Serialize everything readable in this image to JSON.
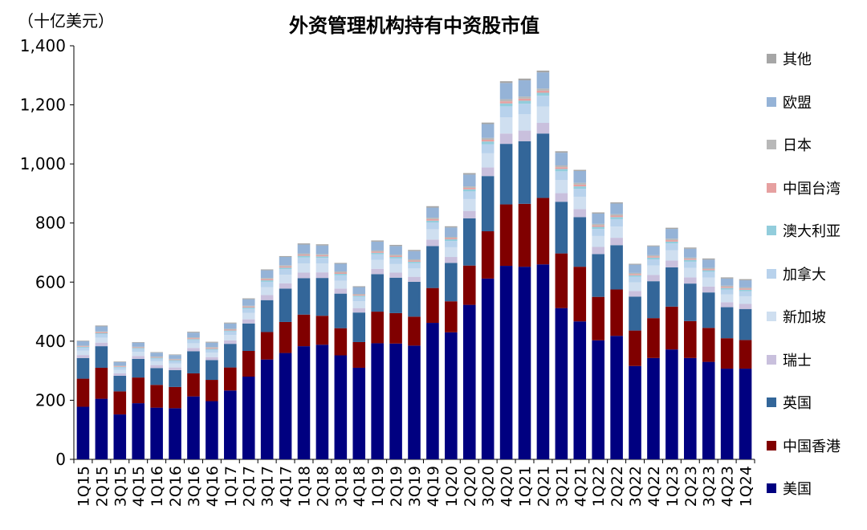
{
  "unit_label": "（十亿美元）",
  "title": "外资管理机构持有中资股市值",
  "chart_data": {
    "type": "bar",
    "stacked": true,
    "ylim": [
      0,
      1400
    ],
    "yticks": [
      0,
      200,
      400,
      600,
      800,
      "1,000",
      "1,200",
      "1,400"
    ],
    "ytick_values": [
      0,
      200,
      400,
      600,
      800,
      1000,
      1200,
      1400
    ],
    "categories": [
      "1Q15",
      "2Q15",
      "3Q15",
      "4Q15",
      "1Q16",
      "2Q16",
      "3Q16",
      "4Q16",
      "1Q17",
      "2Q17",
      "3Q17",
      "4Q17",
      "1Q18",
      "2Q18",
      "3Q18",
      "4Q18",
      "1Q19",
      "2Q19",
      "3Q19",
      "4Q19",
      "1Q20",
      "2Q20",
      "3Q20",
      "4Q20",
      "1Q21",
      "2Q21",
      "3Q21",
      "4Q21",
      "1Q22",
      "2Q22",
      "3Q22",
      "4Q22",
      "1Q23",
      "2Q23",
      "3Q23",
      "4Q23",
      "1Q24"
    ],
    "xtick_labels": [
      "1Q15",
      "2Q15",
      "3Q15",
      "4Q15",
      "1Q16",
      "2Q16",
      "3Q16",
      "4Q16",
      "1Q17",
      "2Q17",
      "3Q17",
      "4Q17",
      "1Q18",
      "2Q18",
      "3Q18",
      "4Q18",
      "1Q19",
      "2Q19",
      "3Q19",
      "4Q19",
      "1Q20",
      "2Q20",
      "3Q20",
      "4Q20",
      "1Q21",
      "2Q21",
      "3Q21",
      "4Q21",
      "1Q22",
      "2Q22",
      "3Q22",
      "4Q22",
      "1Q23",
      "2Q23",
      "3Q23",
      "4Q23",
      "1Q24"
    ],
    "series": [
      {
        "name": "美国",
        "color": "#000080",
        "values": [
          178,
          205,
          152,
          190,
          175,
          173,
          213,
          197,
          233,
          280,
          338,
          360,
          383,
          388,
          352,
          310,
          393,
          392,
          385,
          462,
          430,
          523,
          612,
          655,
          652,
          660,
          512,
          467,
          403,
          418,
          316,
          343,
          372,
          343,
          330,
          307,
          307
        ]
      },
      {
        "name": "中国香港",
        "color": "#800000",
        "values": [
          95,
          105,
          78,
          87,
          77,
          72,
          78,
          72,
          78,
          87,
          93,
          105,
          107,
          98,
          92,
          87,
          107,
          103,
          98,
          118,
          105,
          133,
          160,
          208,
          213,
          225,
          185,
          185,
          147,
          157,
          120,
          135,
          145,
          125,
          115,
          103,
          97
        ]
      },
      {
        "name": "英国",
        "color": "#336699",
        "values": [
          70,
          73,
          53,
          63,
          57,
          57,
          75,
          67,
          80,
          93,
          108,
          113,
          123,
          128,
          117,
          100,
          127,
          120,
          118,
          142,
          130,
          160,
          187,
          205,
          212,
          218,
          175,
          168,
          145,
          150,
          115,
          125,
          133,
          127,
          120,
          105,
          105
        ]
      },
      {
        "name": "瑞士",
        "color": "#C9C0DD",
        "values": [
          10,
          12,
          8,
          10,
          10,
          9,
          11,
          10,
          12,
          14,
          17,
          18,
          19,
          19,
          17,
          15,
          18,
          17,
          17,
          22,
          20,
          25,
          29,
          35,
          36,
          36,
          29,
          27,
          24,
          25,
          19,
          21,
          23,
          21,
          20,
          17,
          17
        ]
      },
      {
        "name": "新加坡",
        "color": "#CFDFF0",
        "values": [
          15,
          17,
          12,
          14,
          13,
          13,
          16,
          15,
          18,
          22,
          27,
          29,
          31,
          30,
          27,
          23,
          30,
          29,
          28,
          35,
          33,
          40,
          48,
          55,
          55,
          55,
          45,
          42,
          37,
          38,
          29,
          32,
          35,
          32,
          30,
          26,
          26
        ]
      },
      {
        "name": "加拿大",
        "color": "#B8D2EC",
        "values": [
          10,
          12,
          8,
          10,
          9,
          9,
          11,
          10,
          12,
          14,
          18,
          19,
          20,
          19,
          18,
          15,
          19,
          19,
          18,
          23,
          21,
          26,
          31,
          37,
          36,
          37,
          29,
          27,
          24,
          25,
          19,
          21,
          23,
          21,
          20,
          17,
          17
        ]
      },
      {
        "name": "澳大利亚",
        "color": "#92CDDC",
        "values": [
          3,
          3,
          2,
          3,
          3,
          3,
          3,
          3,
          3,
          4,
          5,
          5,
          6,
          5,
          5,
          4,
          5,
          5,
          5,
          6,
          6,
          7,
          9,
          10,
          10,
          10,
          8,
          8,
          7,
          7,
          5,
          6,
          6,
          6,
          5,
          5,
          5
        ]
      },
      {
        "name": "中国台湾",
        "color": "#E6A0A0",
        "values": [
          2,
          3,
          2,
          2,
          2,
          2,
          3,
          3,
          3,
          3,
          4,
          4,
          4,
          4,
          4,
          3,
          4,
          4,
          4,
          5,
          4,
          5,
          6,
          7,
          7,
          7,
          6,
          6,
          5,
          5,
          4,
          4,
          5,
          4,
          4,
          4,
          4
        ]
      },
      {
        "name": "日本",
        "color": "#B8B8B8",
        "values": [
          2,
          3,
          2,
          2,
          2,
          2,
          3,
          3,
          3,
          3,
          4,
          4,
          4,
          4,
          4,
          3,
          4,
          4,
          4,
          5,
          4,
          5,
          6,
          7,
          7,
          7,
          6,
          6,
          5,
          5,
          4,
          4,
          5,
          4,
          4,
          4,
          4
        ]
      },
      {
        "name": "欧盟",
        "color": "#95B3D7",
        "values": [
          15,
          17,
          12,
          14,
          13,
          13,
          16,
          15,
          18,
          22,
          26,
          28,
          30,
          29,
          26,
          23,
          30,
          29,
          28,
          34,
          32,
          40,
          47,
          55,
          55,
          55,
          43,
          40,
          35,
          36,
          28,
          30,
          33,
          30,
          28,
          24,
          24
        ]
      },
      {
        "name": "其他",
        "color": "#A6A6A6",
        "values": [
          2,
          3,
          2,
          2,
          2,
          2,
          3,
          3,
          3,
          3,
          3,
          3,
          4,
          4,
          3,
          3,
          4,
          4,
          4,
          5,
          4,
          5,
          5,
          6,
          6,
          6,
          5,
          4,
          4,
          4,
          3,
          3,
          4,
          4,
          4,
          4,
          4
        ]
      }
    ]
  },
  "legend": [
    {
      "label": "其他",
      "color": "#A6A6A6"
    },
    {
      "label": "欧盟",
      "color": "#95B3D7"
    },
    {
      "label": "日本",
      "color": "#B8B8B8"
    },
    {
      "label": "中国台湾",
      "color": "#E6A0A0"
    },
    {
      "label": "澳大利亚",
      "color": "#92CDDC"
    },
    {
      "label": "加拿大",
      "color": "#B8D2EC"
    },
    {
      "label": "新加坡",
      "color": "#CFDFF0"
    },
    {
      "label": "瑞士",
      "color": "#C9C0DD"
    },
    {
      "label": "英国",
      "color": "#336699"
    },
    {
      "label": "中国香港",
      "color": "#800000"
    },
    {
      "label": "美国",
      "color": "#000080"
    }
  ]
}
